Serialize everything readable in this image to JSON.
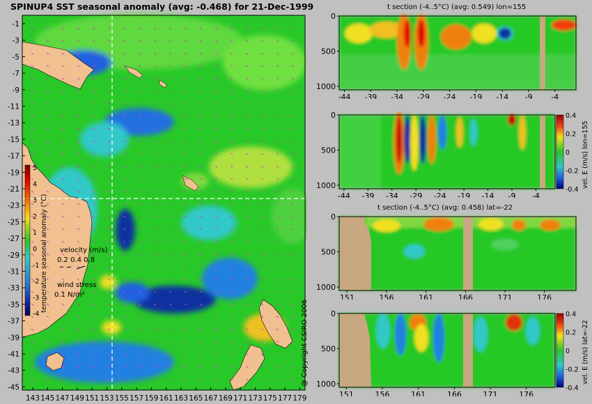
{
  "main_title": "SPINUP4 SST seasonal anomaly (avg: -0.468) for 21-Dec-1999",
  "copyright": "@ Copyright CSIRO 2006",
  "colors": {
    "background": "#c0c0c0",
    "land": "#f0c090",
    "section_land": "#c8a880",
    "ocean_mid": "#28c828",
    "ocean_light": "#60d840",
    "cold": "#1030a0",
    "cool": "#2080e0",
    "cyan": "#30c8c8",
    "warm": "#e8e020",
    "hot": "#f08010",
    "red": "#c00000",
    "guide_line": "#ffffff",
    "arrows": "#d040c0"
  },
  "map": {
    "y_ticks": [
      "-1",
      "-3",
      "-5",
      "-7",
      "-9",
      "-11",
      "-13",
      "-15",
      "-17",
      "-19",
      "-21",
      "-23",
      "-25",
      "-27",
      "-29",
      "-31",
      "-33",
      "-35",
      "-37",
      "-39",
      "-41",
      "-43",
      "-45"
    ],
    "x_ticks": [
      "143",
      "145",
      "147",
      "149",
      "151",
      "153",
      "155",
      "157",
      "159",
      "161",
      "163",
      "165",
      "167",
      "169",
      "171",
      "173",
      "175",
      "177",
      "179"
    ],
    "colorbar_ticks": [
      "5",
      "4",
      "3",
      "2",
      "1",
      "0",
      "-1",
      "-2",
      "-3",
      "-4"
    ],
    "colorbar_label": "temperature seasonal anomaly (°C)",
    "velocity_label": "velocity (m/s)",
    "velocity_scale": "0.2 0.4 0.8",
    "wind_label": "wind stress",
    "wind_scale": "0.1 N/m²"
  },
  "chart_data": [
    {
      "type": "heatmap",
      "title": "SPINUP4 SST seasonal anomaly (avg: -0.468) for 21-Dec-1999",
      "x_range": [
        143,
        180
      ],
      "y_range": [
        -45,
        0
      ],
      "x_ticks": [
        143,
        145,
        147,
        149,
        151,
        153,
        155,
        157,
        159,
        161,
        163,
        165,
        167,
        169,
        171,
        173,
        175,
        177,
        179
      ],
      "y_ticks": [
        -1,
        -3,
        -5,
        -7,
        -9,
        -11,
        -13,
        -15,
        -17,
        -19,
        -21,
        -23,
        -25,
        -27,
        -29,
        -31,
        -33,
        -35,
        -37,
        -39,
        -41,
        -43,
        -45
      ],
      "colorbar": {
        "label": "temperature seasonal anomaly (°C)",
        "range": [
          -4,
          5
        ]
      },
      "guide_lines": {
        "lon": 155,
        "lat": -22
      }
    },
    {
      "type": "heatmap",
      "title": "t section (-4..5°C) (avg: 0.549) lon=155",
      "x_ticks": [
        "-44",
        "-39",
        "-34",
        "-29",
        "-24",
        "-19",
        "-14",
        "-9",
        "-4"
      ],
      "y_ticks": [
        "0",
        "500",
        "1000"
      ],
      "x_range": [
        -45,
        0
      ],
      "y_range": [
        1050,
        0
      ]
    },
    {
      "type": "heatmap",
      "title": "",
      "x_ticks": [
        "-44",
        "-39",
        "-34",
        "-29",
        "-24",
        "-19",
        "-14",
        "-9",
        "-4"
      ],
      "y_ticks": [
        "0",
        "500",
        "1000"
      ],
      "x_range": [
        -45,
        0
      ],
      "y_range": [
        1050,
        0
      ],
      "colorbar": {
        "label": "vel. E (m/s) lon=155",
        "ticks": [
          "0.4",
          "0.2",
          "0",
          "-0.2",
          "-0.4"
        ],
        "range": [
          -0.4,
          0.4
        ]
      }
    },
    {
      "type": "heatmap",
      "title": "t section (-4..5°C) (avg: 0.458) lat=-22",
      "x_ticks": [
        "151",
        "156",
        "161",
        "166",
        "171",
        "176"
      ],
      "y_ticks": [
        "0",
        "500",
        "1000"
      ],
      "x_range": [
        150,
        180
      ],
      "y_range": [
        1050,
        0
      ]
    },
    {
      "type": "heatmap",
      "title": "",
      "x_ticks": [
        "151",
        "156",
        "161",
        "166",
        "171",
        "176"
      ],
      "y_ticks": [
        "0",
        "500",
        "1000"
      ],
      "x_range": [
        150,
        180
      ],
      "y_range": [
        1050,
        0
      ],
      "colorbar": {
        "label": "vel. E (m/s) lat=-22",
        "ticks": [
          "0.4",
          "0.2",
          "0",
          "-0.2",
          "-0.4"
        ],
        "range": [
          -0.4,
          0.4
        ]
      }
    }
  ]
}
